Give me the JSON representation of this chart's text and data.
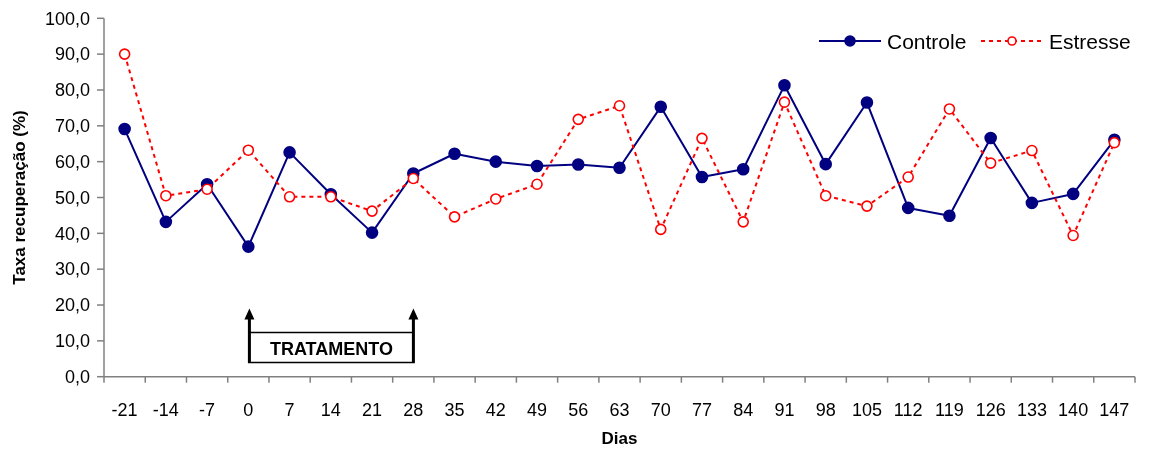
{
  "chart_data": {
    "type": "line",
    "xlabel": "Dias",
    "ylabel": "Taxa recuperação (%)",
    "categories": [
      "-21",
      "-14",
      "-7",
      "0",
      "7",
      "14",
      "21",
      "28",
      "35",
      "42",
      "49",
      "56",
      "63",
      "70",
      "77",
      "84",
      "91",
      "98",
      "105",
      "112",
      "119",
      "126",
      "133",
      "140",
      "147"
    ],
    "ylim": [
      0,
      100
    ],
    "yticks": [
      {
        "value": 0,
        "label": "0,0"
      },
      {
        "value": 10,
        "label": "10,0"
      },
      {
        "value": 20,
        "label": "20,0"
      },
      {
        "value": 30,
        "label": "30,0"
      },
      {
        "value": 40,
        "label": "40,0"
      },
      {
        "value": 50,
        "label": "50,0"
      },
      {
        "value": 60,
        "label": "60,0"
      },
      {
        "value": 70,
        "label": "70,0"
      },
      {
        "value": 80,
        "label": "80,0"
      },
      {
        "value": 90,
        "label": "90,0"
      },
      {
        "value": 100,
        "label": "100,0"
      }
    ],
    "series": [
      {
        "name": "Controle",
        "color": "#000080",
        "line_style": "solid",
        "values": [
          69.1,
          43.2,
          53.7,
          36.3,
          62.6,
          50.9,
          40.2,
          56.7,
          62.2,
          60.0,
          58.8,
          59.2,
          58.3,
          75.3,
          55.7,
          57.9,
          81.3,
          59.3,
          76.5,
          47.1,
          44.9,
          66.6,
          48.5,
          51.0,
          66.1
        ]
      },
      {
        "name": "Estresse",
        "color": "#ff0000",
        "line_style": "dashed",
        "values": [
          90.0,
          50.5,
          52.3,
          63.2,
          50.2,
          50.2,
          46.2,
          55.3,
          44.6,
          49.6,
          53.7,
          71.8,
          75.6,
          41.1,
          66.5,
          43.2,
          76.6,
          50.5,
          47.6,
          55.7,
          74.7,
          59.6,
          63.1,
          39.4,
          65.3
        ]
      }
    ],
    "marker": "circle",
    "annotations": [
      "TRATAMENTO"
    ],
    "legend": "top right",
    "grid": false
  }
}
